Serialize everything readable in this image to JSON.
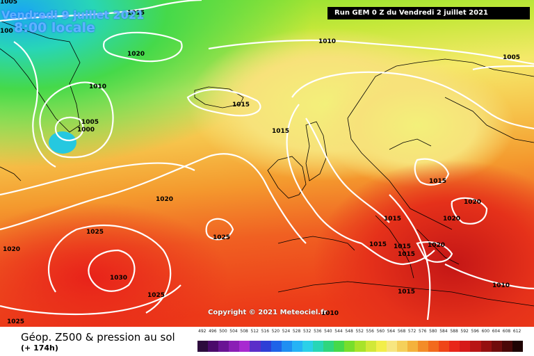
{
  "header": {
    "date_line": "Vendredi 9 juillet 2021",
    "time_line": "8:00 locale",
    "run_info": "Run GEM 0 Z du Vendredi 2 juillet 2021"
  },
  "copyright": "Copyright © 2021 Meteociel.fr",
  "footer": {
    "title": "Géop. Z500 & pression au sol",
    "subtitle": "(+ 174h)"
  },
  "scale_labels": [
    "492",
    "496",
    "500",
    "504",
    "508",
    "512",
    "516",
    "520",
    "524",
    "528",
    "532",
    "536",
    "540",
    "544",
    "548",
    "552",
    "556",
    "560",
    "564",
    "568",
    "572",
    "576",
    "580",
    "584",
    "588",
    "592",
    "596",
    "600",
    "604",
    "608",
    "612"
  ],
  "scale_colors": [
    "#2d0b3d",
    "#4b0a6b",
    "#6a1494",
    "#8a1fb5",
    "#a82ad0",
    "#5b2ec9",
    "#2e3fd6",
    "#1f63e8",
    "#1f8ff2",
    "#25b3f5",
    "#2bd0e8",
    "#28d6b6",
    "#2fd67e",
    "#45d94a",
    "#77de2c",
    "#a8e32a",
    "#d2e838",
    "#f2ee4a",
    "#f7e680",
    "#f5d05a",
    "#f4b23c",
    "#f38c28",
    "#f26a1d",
    "#ef4518",
    "#e8261a",
    "#d61a1a",
    "#b81515",
    "#951010",
    "#700c0c",
    "#4a0707",
    "#1e0303"
  ],
  "isobars": [
    {
      "label": "1015",
      "left_pct": 25.5
    },
    {
      "label": "1010",
      "left_pct": 61
    },
    {
      "label": "1005",
      "left_pct": 95.5
    },
    {
      "label": "1020",
      "left_pct": 24
    },
    {
      "label": "1010",
      "left_pct": 16.5
    },
    {
      "label": "1005",
      "left_pct": 15
    },
    {
      "label": "1000",
      "left_pct": 14.5
    },
    {
      "label": "1015",
      "left_pct": 45
    },
    {
      "label": "1015",
      "left_pct": 52
    },
    {
      "label": "1015",
      "left_pct": 82
    },
    {
      "label": "1020",
      "left_pct": 30.5
    },
    {
      "label": "1020",
      "left_pct": 88
    },
    {
      "label": "1020",
      "left_pct": 84.5
    },
    {
      "label": "1025",
      "left_pct": 17.5
    },
    {
      "label": "1025",
      "left_pct": 41.3
    },
    {
      "label": "1020",
      "left_pct": 2
    },
    {
      "label": "1015",
      "left_pct": 73.5
    },
    {
      "label": "1015",
      "left_pct": 70.5
    },
    {
      "label": "1015",
      "left_pct": 75
    },
    {
      "label": "1015",
      "left_pct": 76
    },
    {
      "label": "1020",
      "left_pct": 81.5
    },
    {
      "label": "1030",
      "left_pct": 22
    },
    {
      "label": "1025",
      "left_pct": 29
    },
    {
      "label": "1015",
      "left_pct": 76
    },
    {
      "label": "1010",
      "left_pct": 94
    },
    {
      "label": "1010",
      "left_pct": 61.5
    },
    {
      "label": "1025",
      "left_pct": 2.5
    },
    {
      "label": "1005",
      "left_pct": 1.5
    },
    {
      "label": "100",
      "left_pct": 1.3
    }
  ]
}
